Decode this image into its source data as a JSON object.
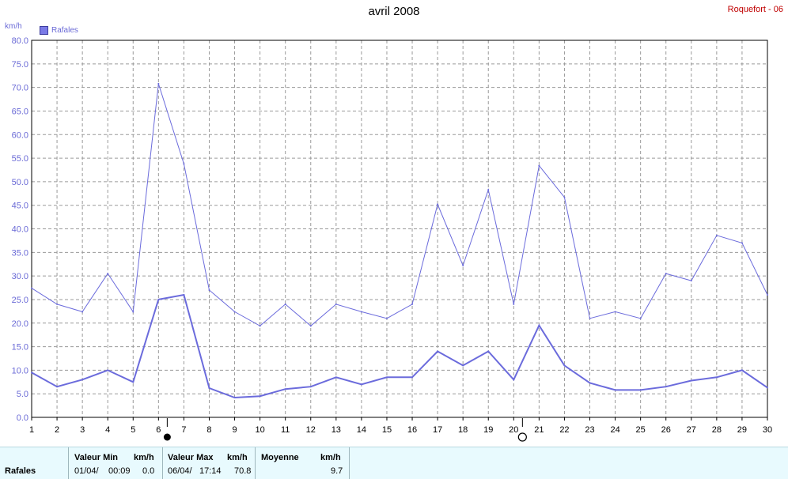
{
  "header": {
    "title": "avril 2008",
    "station": "Roquefort - 06",
    "unit": "km/h",
    "legend": "Rafales"
  },
  "chart_data": {
    "type": "line",
    "title": "avril 2008",
    "ylabel": "km/h",
    "ylim": [
      0,
      80
    ],
    "yticks": [
      "0.0",
      "5.0",
      "10.0",
      "15.0",
      "20.0",
      "25.0",
      "30.0",
      "35.0",
      "40.0",
      "45.0",
      "50.0",
      "55.0",
      "60.0",
      "65.0",
      "70.0",
      "75.0",
      "80.0"
    ],
    "x": [
      1,
      2,
      3,
      4,
      5,
      6,
      7,
      8,
      9,
      10,
      11,
      12,
      13,
      14,
      15,
      16,
      17,
      18,
      19,
      20,
      21,
      22,
      23,
      24,
      25,
      26,
      27,
      28,
      29,
      30
    ],
    "grid": true,
    "legend_position": "top-left",
    "series": [
      {
        "name": "Rafales",
        "color": "#6b6bdc",
        "values": [
          27.4,
          24.0,
          22.4,
          30.5,
          22.4,
          70.8,
          53.8,
          27.0,
          22.4,
          19.4,
          24.0,
          19.4,
          24.0,
          22.4,
          21.0,
          24.0,
          45.2,
          32.2,
          48.3,
          24.0,
          53.4,
          46.7,
          21.0,
          22.4,
          21.0,
          30.5,
          29.0,
          38.6,
          37.0,
          26.0
        ]
      },
      {
        "name": "",
        "color": "#6b6bdc",
        "values": [
          9.5,
          6.5,
          8.0,
          10.0,
          7.5,
          25.0,
          26.0,
          6.2,
          4.2,
          4.5,
          6.0,
          6.5,
          8.5,
          7.0,
          8.5,
          8.5,
          14.0,
          11.0,
          14.0,
          8.0,
          19.5,
          11.0,
          7.3,
          5.8,
          5.8,
          6.5,
          7.8,
          8.5,
          10.0,
          6.3
        ]
      }
    ],
    "moon_markers": [
      {
        "day": 6,
        "phase": "new-moon"
      },
      {
        "day": 20,
        "phase": "full-moon"
      }
    ]
  },
  "footer": {
    "series_name": "Rafales",
    "min_label": "Valeur Min",
    "min_unit": "km/h",
    "min_date": "01/04/",
    "min_time": "00:09",
    "min_value": "0.0",
    "max_label": "Valeur Max",
    "max_unit": "km/h",
    "max_date": "06/04/",
    "max_time": "17:14",
    "max_value": "70.8",
    "avg_label": "Moyenne",
    "avg_unit": "km/h",
    "avg_value": "9.7"
  }
}
